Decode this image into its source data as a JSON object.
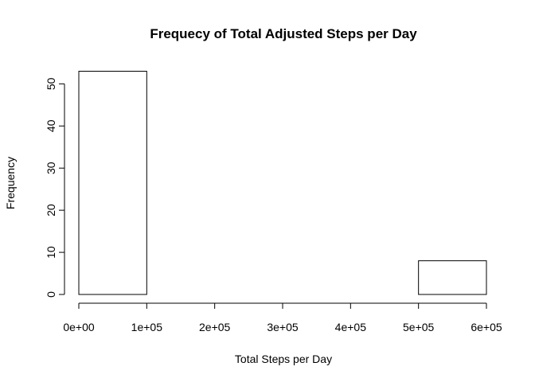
{
  "chart_data": {
    "type": "bar",
    "title": "Frequecy of Total Adjusted Steps per Day",
    "xlabel": "Total Steps per Day",
    "ylabel": "Frequency",
    "bins": [
      {
        "start": 0,
        "end": 100000,
        "count": 53
      },
      {
        "start": 100000,
        "end": 200000,
        "count": 0
      },
      {
        "start": 200000,
        "end": 300000,
        "count": 0
      },
      {
        "start": 300000,
        "end": 400000,
        "count": 0
      },
      {
        "start": 400000,
        "end": 500000,
        "count": 0
      },
      {
        "start": 500000,
        "end": 600000,
        "count": 8
      }
    ],
    "xlim": [
      0,
      600000
    ],
    "ylim": [
      0,
      53
    ],
    "x_ticks": [
      {
        "value": 0,
        "label": "0e+00"
      },
      {
        "value": 100000,
        "label": "1e+05"
      },
      {
        "value": 200000,
        "label": "2e+05"
      },
      {
        "value": 300000,
        "label": "3e+05"
      },
      {
        "value": 400000,
        "label": "4e+05"
      },
      {
        "value": 500000,
        "label": "5e+05"
      },
      {
        "value": 600000,
        "label": "6e+05"
      }
    ],
    "y_ticks": [
      {
        "value": 0,
        "label": "0"
      },
      {
        "value": 10,
        "label": "10"
      },
      {
        "value": 20,
        "label": "20"
      },
      {
        "value": 30,
        "label": "30"
      },
      {
        "value": 40,
        "label": "40"
      },
      {
        "value": 50,
        "label": "50"
      }
    ],
    "grid": false,
    "legend": "none"
  }
}
